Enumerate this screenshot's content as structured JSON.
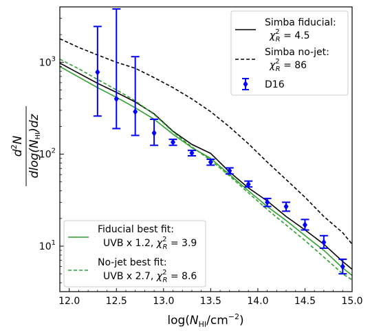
{
  "chart_data": {
    "type": "line",
    "xlabel": "log(N_HI/cm^-2)",
    "ylabel": "d^2N / d log(N_HI) dz",
    "xlim": [
      11.9,
      15.0
    ],
    "ylim": [
      3.2,
      4000
    ],
    "yscale": "log",
    "x_ticks": [
      "12.0",
      "12.5",
      "13.0",
      "13.5",
      "14.0",
      "14.5",
      "15.0"
    ],
    "y_ticks": [
      "10^1",
      "10^2",
      "10^3"
    ],
    "legend_top": {
      "placement": "top-right",
      "entries": [
        {
          "line1": "Simba fiducial:",
          "line2": "χ²_R = 4.5"
        },
        {
          "line1": "Simba no-jet:",
          "line2": "χ²_R = 86"
        },
        {
          "line1": "D16",
          "line2": ""
        }
      ]
    },
    "legend_bottom": {
      "placement": "bottom-left",
      "entries": [
        {
          "line1": "Fiducial best fit:",
          "line2": "UVB x 1.2, χ²_R = 3.9"
        },
        {
          "line1": "No-jet best fit:",
          "line2": "UVB x 2.7, χ²_R = 8.6"
        }
      ]
    },
    "colors": {
      "fiducial": "#000000",
      "nojet": "#000000",
      "data": "#0000ff",
      "bestfit": "#2ca02c"
    },
    "series": [
      {
        "name": "Simba fiducial",
        "style": "solid",
        "color": "#000000",
        "x": [
          11.9,
          12.1,
          12.3,
          12.5,
          12.7,
          12.9,
          13.1,
          13.3,
          13.5,
          13.7,
          13.9,
          14.1,
          14.3,
          14.5,
          14.7,
          14.9,
          15.0
        ],
        "y": [
          980,
          760,
          590,
          470,
          370,
          275,
          178,
          128,
          102,
          64,
          43,
          31,
          21,
          15,
          10.5,
          6.8,
          5.6
        ]
      },
      {
        "name": "Simba no-jet",
        "style": "dashed",
        "color": "#000000",
        "x": [
          11.9,
          12.1,
          12.3,
          12.5,
          12.7,
          12.9,
          13.1,
          13.3,
          13.5,
          13.7,
          13.9,
          14.1,
          14.3,
          14.5,
          14.7,
          14.9,
          15.0
        ],
        "y": [
          1800,
          1450,
          1200,
          1000,
          860,
          680,
          530,
          400,
          290,
          198,
          130,
          82,
          53,
          34,
          21,
          14,
          10.5
        ]
      },
      {
        "name": "Fiducial best fit: UVB x 1.2",
        "style": "solid",
        "color": "#2ca02c",
        "x": [
          11.9,
          12.1,
          12.3,
          12.5,
          12.7,
          12.9,
          13.1,
          13.3,
          13.5,
          13.7,
          13.9,
          14.1,
          14.3,
          14.5,
          14.7,
          14.9,
          15.0
        ],
        "y": [
          900,
          690,
          530,
          415,
          320,
          240,
          165,
          118,
          90,
          60,
          40,
          27,
          19,
          13,
          9.0,
          5.8,
          4.8
        ]
      },
      {
        "name": "No-jet best fit: UVB x 2.7",
        "style": "dashed",
        "color": "#2ca02c",
        "x": [
          11.9,
          12.1,
          12.3,
          12.5,
          12.7,
          12.9,
          13.1,
          13.3,
          13.5,
          13.7,
          13.9,
          14.1,
          14.3,
          14.5,
          14.7,
          14.9,
          15.0
        ],
        "y": [
          1080,
          850,
          650,
          500,
          380,
          270,
          175,
          120,
          86,
          58,
          38,
          25,
          17,
          11.5,
          7.6,
          5.0,
          4.3
        ]
      }
    ],
    "errorbar_series": {
      "name": "D16",
      "color": "#0000ff",
      "x": [
        12.3,
        12.5,
        12.7,
        12.9,
        13.1,
        13.3,
        13.5,
        13.7,
        13.9,
        14.1,
        14.3,
        14.5,
        14.7,
        14.9
      ],
      "y": [
        780,
        400,
        290,
        170,
        135,
        103,
        82,
        66,
        47,
        30,
        27,
        17,
        11,
        6
      ],
      "y_low": [
        260,
        190,
        160,
        125,
        125,
        96,
        76,
        61,
        44,
        27,
        24,
        15,
        9.5,
        5.0
      ],
      "y_high": [
        2450,
        3800,
        1150,
        240,
        145,
        110,
        88,
        71,
        51,
        33,
        30,
        19.5,
        13,
        7.2
      ]
    }
  }
}
